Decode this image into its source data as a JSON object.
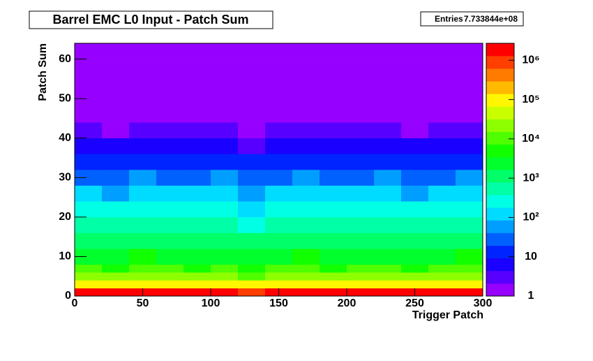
{
  "chart_data": {
    "type": "heatmap",
    "title": "Barrel EMC L0 Input - Patch Sum",
    "stats": {
      "label": "Entries",
      "value": "7.733844e+08"
    },
    "x_label": "Trigger Patch",
    "y_label": "Patch Sum",
    "xlim": [
      0,
      300
    ],
    "xticks": [
      0,
      50,
      100,
      150,
      200,
      250,
      300
    ],
    "ylim": [
      0,
      64
    ],
    "yticks": [
      0,
      10,
      20,
      30,
      40,
      50,
      60
    ],
    "zlim": [
      1,
      2700000
    ],
    "zlog": true,
    "colormap": "rainbow",
    "zticks": [
      1,
      10,
      {
        "value": 100,
        "label": "10²"
      },
      {
        "value": 1000,
        "label": "10³"
      },
      {
        "value": 10000,
        "label": "10⁴"
      },
      {
        "value": 100000,
        "label": "10⁵"
      },
      {
        "value": 1000000,
        "label": "10⁶"
      }
    ],
    "xbins": [
      0,
      20,
      40,
      60,
      80,
      100,
      120,
      140,
      160,
      180,
      200,
      220,
      240,
      260,
      280,
      300
    ],
    "ybins": [
      0,
      2,
      4,
      6,
      8,
      12,
      16,
      20,
      24,
      28,
      32,
      36,
      40,
      44,
      48,
      52,
      56,
      60,
      64
    ],
    "z": [
      [
        1500000,
        1300000,
        1600000,
        1500000,
        1400000,
        1600000,
        1200000,
        1500000,
        1700000,
        1400000,
        1500000,
        1600000,
        1300000,
        1500000,
        1700000
      ],
      [
        100000,
        80000,
        120000,
        100000,
        90000,
        110000,
        70000,
        100000,
        120000,
        90000,
        100000,
        110000,
        80000,
        100000,
        120000
      ],
      [
        20000,
        16000,
        24000,
        20000,
        18000,
        22000,
        14000,
        20000,
        24000,
        18000,
        20000,
        22000,
        16000,
        20000,
        24000
      ],
      [
        8000,
        6400,
        9600,
        8000,
        7200,
        8800,
        5600,
        8000,
        9600,
        7200,
        8000,
        8800,
        6400,
        8000,
        9600
      ],
      [
        3000,
        2400,
        3600,
        3000,
        2700,
        3300,
        2100,
        3000,
        3600,
        2700,
        3000,
        3300,
        2400,
        3000,
        3600
      ],
      [
        1200,
        960,
        1440,
        1200,
        1080,
        1320,
        840,
        1200,
        1440,
        1080,
        1200,
        1320,
        960,
        1200,
        1440
      ],
      [
        500,
        400,
        600,
        500,
        450,
        550,
        350,
        500,
        600,
        450,
        500,
        550,
        400,
        500,
        600
      ],
      [
        250,
        200,
        300,
        250,
        225,
        275,
        175,
        250,
        300,
        225,
        250,
        275,
        200,
        250,
        300
      ],
      [
        100,
        80,
        120,
        100,
        90,
        110,
        70,
        100,
        120,
        90,
        100,
        110,
        80,
        100,
        120
      ],
      [
        40,
        32,
        48,
        40,
        36,
        44,
        28,
        40,
        48,
        36,
        40,
        44,
        32,
        40,
        48
      ],
      [
        15,
        12,
        18,
        15,
        14,
        17,
        11,
        15,
        18,
        14,
        15,
        17,
        12,
        15,
        18
      ],
      [
        6,
        5,
        7,
        6,
        5,
        7,
        4,
        6,
        7,
        5,
        6,
        7,
        5,
        6,
        7
      ],
      [
        3,
        2,
        4,
        3,
        3,
        3,
        2,
        3,
        4,
        3,
        3,
        3,
        2,
        3,
        4
      ],
      [
        2,
        2,
        2,
        2,
        2,
        2,
        1,
        2,
        2,
        2,
        2,
        2,
        2,
        2,
        2
      ],
      [
        1,
        1,
        2,
        1,
        1,
        2,
        1,
        1,
        2,
        1,
        1,
        2,
        1,
        1,
        2
      ],
      [
        1,
        1,
        1,
        1,
        1,
        1,
        1,
        1,
        1,
        1,
        1,
        1,
        1,
        1,
        1
      ],
      [
        1,
        1,
        1,
        1,
        1,
        1,
        1,
        1,
        1,
        1,
        1,
        1,
        1,
        1,
        1
      ],
      [
        1,
        1,
        1,
        1,
        1,
        1,
        1,
        1,
        1,
        1,
        1,
        1,
        1,
        1,
        1
      ]
    ]
  }
}
